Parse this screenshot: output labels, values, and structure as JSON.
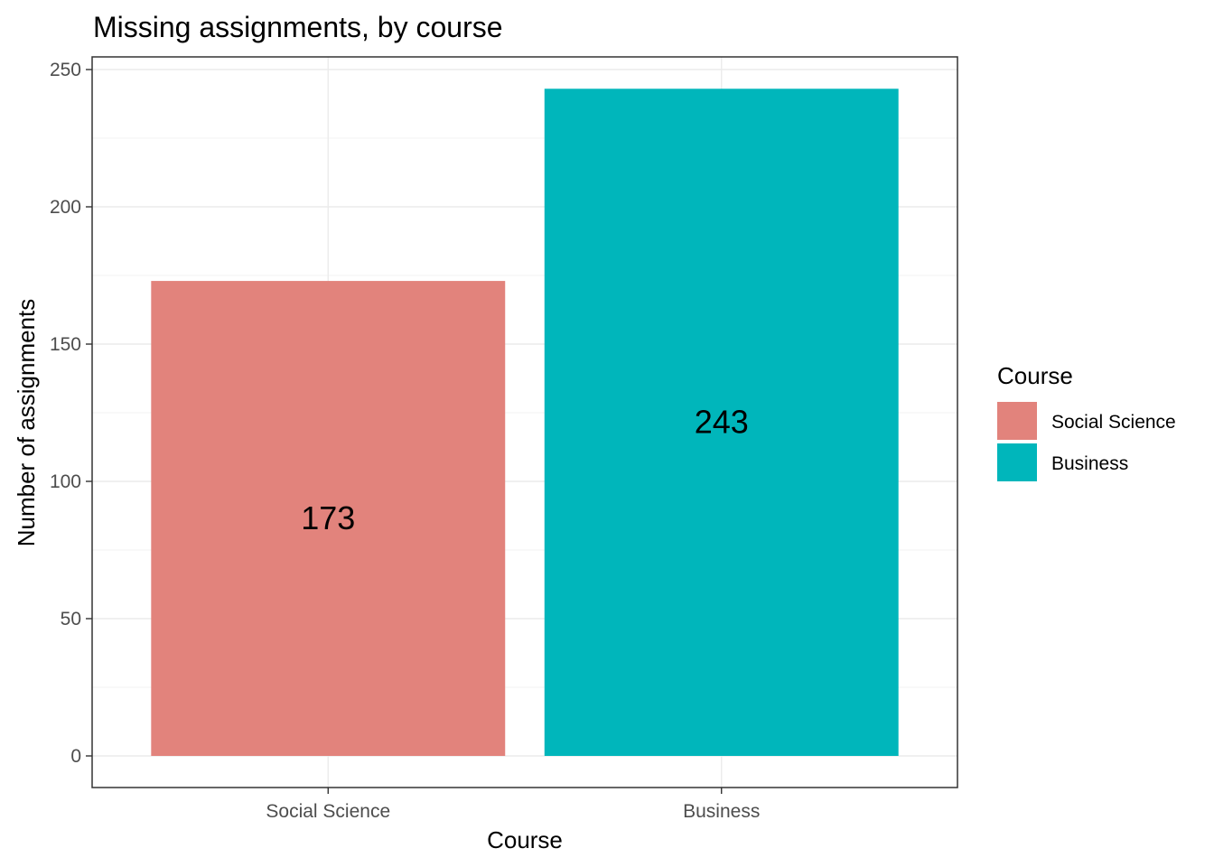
{
  "chart_data": {
    "type": "bar",
    "title": "Missing assignments, by course",
    "xlabel": "Course",
    "ylabel": "Number of assignments",
    "categories": [
      "Social Science",
      "Business"
    ],
    "values": [
      173,
      243
    ],
    "data_labels": [
      "173",
      "243"
    ],
    "colors": [
      "#E2837C",
      "#00B6BB"
    ],
    "ylim": [
      0,
      250
    ],
    "yticks": [
      0,
      50,
      100,
      150,
      200,
      250
    ],
    "ytick_labels": [
      "0",
      "50",
      "100",
      "150",
      "200",
      "250"
    ],
    "grid": true,
    "legend": {
      "title": "Course",
      "position": "right",
      "entries": [
        "Social Science",
        "Business"
      ]
    }
  }
}
